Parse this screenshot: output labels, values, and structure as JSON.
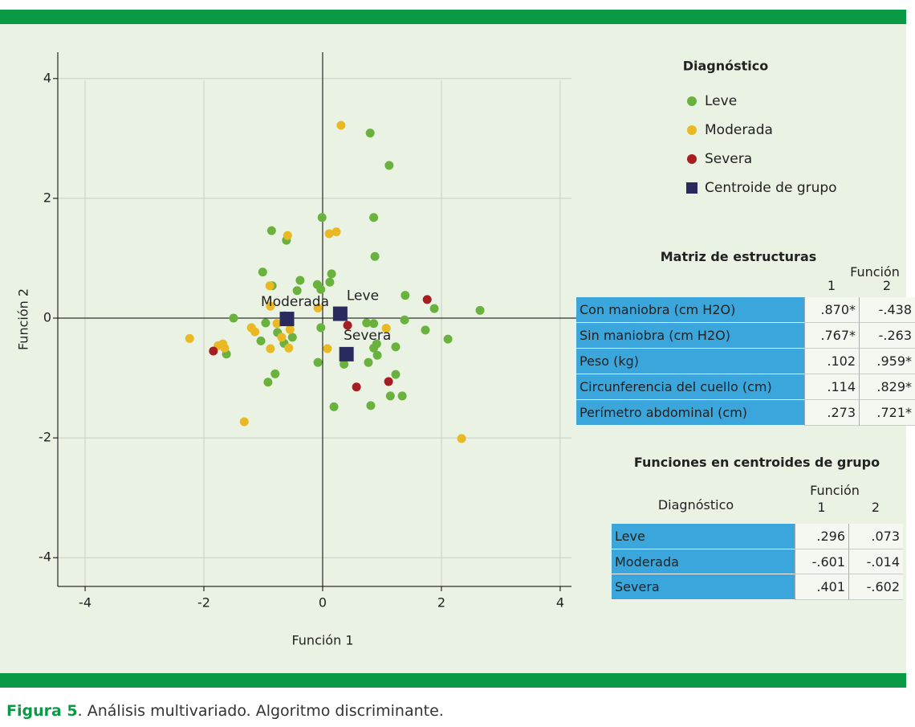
{
  "chart_data": {
    "type": "scatter",
    "xlabel": "Función 1",
    "ylabel": "Función 2",
    "xlim": [
      -4.46,
      4.19
    ],
    "ylim": [
      -4.48,
      4.44
    ],
    "xticks": [
      -4,
      -2,
      0,
      2,
      4
    ],
    "yticks": [
      -4,
      -2,
      0,
      2,
      4
    ],
    "grid": true,
    "legend_title": "Diagnóstico",
    "legend_position": "right",
    "series": [
      {
        "name": "Leve",
        "color": "#6ab23e",
        "marker": "circle",
        "x": [
          0.8,
          1.12,
          0.86,
          -0.01,
          -0.86,
          -0.61,
          0.88,
          -1.01,
          0.15,
          0.12,
          -0.38,
          -0.85,
          -0.09,
          -0.03,
          -0.43,
          1.39,
          1.88,
          2.65,
          -1.5,
          -0.96,
          -0.76,
          -0.51,
          -1.04,
          -0.65,
          -0.03,
          0.74,
          0.86,
          1.38,
          0.91,
          0.86,
          0.92,
          1.23,
          1.73,
          2.11,
          -0.08,
          0.36,
          0.77,
          1.23,
          -0.8,
          -0.92,
          1.14,
          1.34,
          0.19,
          0.81,
          -1.62
        ],
        "y": [
          3.09,
          2.55,
          1.68,
          1.68,
          1.46,
          1.3,
          1.03,
          0.77,
          0.74,
          0.6,
          0.63,
          0.54,
          0.56,
          0.48,
          0.46,
          0.38,
          0.16,
          0.13,
          0,
          -0.08,
          -0.24,
          -0.32,
          -0.38,
          -0.42,
          -0.16,
          -0.08,
          -0.09,
          -0.03,
          -0.43,
          -0.5,
          -0.62,
          -0.48,
          -0.2,
          -0.35,
          -0.74,
          -0.77,
          -0.74,
          -0.94,
          -0.93,
          -1.07,
          -1.3,
          -1.3,
          -1.48,
          -1.46,
          -0.6
        ]
      },
      {
        "name": "Moderada",
        "color": "#e8b923",
        "marker": "circle",
        "x": [
          0.31,
          0.23,
          0.11,
          -0.59,
          -0.89,
          -0.88,
          -0.08,
          -2.24,
          -1.76,
          -1.68,
          -1.65,
          -1.2,
          -1.14,
          -0.77,
          -0.55,
          -0.57,
          -0.88,
          -0.64,
          0.08,
          1.07,
          -1.32,
          2.34,
          -0.69
        ],
        "y": [
          3.22,
          1.44,
          1.41,
          1.38,
          0.54,
          0.2,
          0.17,
          -0.34,
          -0.46,
          -0.43,
          -0.5,
          -0.16,
          -0.23,
          -0.09,
          -0.19,
          -0.5,
          -0.51,
          0.04,
          -0.51,
          -0.17,
          -1.73,
          -2.01,
          -0.32
        ]
      },
      {
        "name": "Severa",
        "color": "#a71e22",
        "marker": "circle",
        "x": [
          1.76,
          -1.84,
          0.42,
          1.11,
          0.57
        ],
        "y": [
          0.31,
          -0.55,
          -0.12,
          -1.06,
          -1.15
        ]
      },
      {
        "name": "Centroide de grupo",
        "color": "#2b2a5e",
        "marker": "square",
        "labels": [
          "Leve",
          "Moderada",
          "Severa"
        ],
        "x": [
          0.296,
          -0.601,
          0.401
        ],
        "y": [
          0.073,
          -0.014,
          -0.602
        ]
      }
    ]
  },
  "structure_table": {
    "title": "Matriz de estructuras",
    "group_header": "Función",
    "columns": [
      "1",
      "2"
    ],
    "rows": [
      [
        "Con maniobra (cm H2O)",
        ".870*",
        "-.438"
      ],
      [
        "Sin maniobra (cm H2O)",
        ".767*",
        "-.263"
      ],
      [
        "Peso (kg)",
        ".102",
        ".959*"
      ],
      [
        "Circunferencia del cuello (cm)",
        ".114",
        ".829*"
      ],
      [
        "Perímetro abdominal (cm)",
        ".273",
        ".721*"
      ]
    ]
  },
  "centroid_table": {
    "title": "Funciones en centroides de grupo",
    "row_header": "Diagnóstico",
    "group_header": "Función",
    "columns": [
      "1",
      "2"
    ],
    "rows": [
      [
        "Leve",
        ".296",
        ".073"
      ],
      [
        "Moderada",
        "-.601",
        "-.014"
      ],
      [
        "Severa",
        ".401",
        "-.602"
      ]
    ]
  },
  "caption": {
    "label": "Figura 5",
    "text": ". Análisis multivariado. Algoritmo discriminante."
  }
}
